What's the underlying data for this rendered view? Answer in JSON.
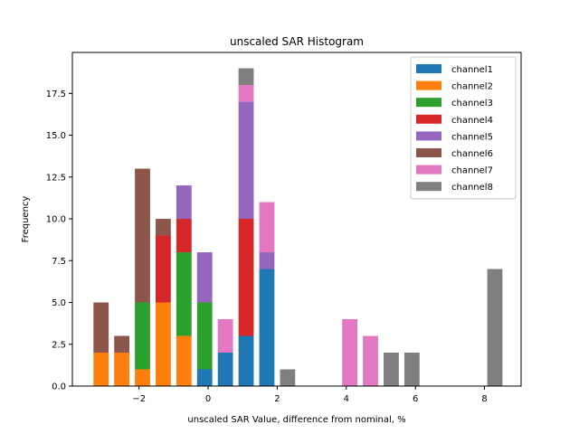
{
  "chart_data": {
    "type": "bar",
    "stacked": true,
    "title": "unscaled SAR Histogram",
    "xlabel": "unscaled SAR Value, difference from nominal, %",
    "ylabel": "Frequency",
    "xlim": [
      -3.93,
      9.06
    ],
    "ylim": [
      0,
      19.95
    ],
    "xticks": [
      -2,
      0,
      2,
      4,
      6,
      8
    ],
    "xtick_labels": [
      "−2",
      "0",
      "2",
      "4",
      "6",
      "8"
    ],
    "yticks": [
      0,
      2.5,
      5,
      7.5,
      10,
      12.5,
      15,
      17.5
    ],
    "ytick_labels": [
      "0.0",
      "2.5",
      "5.0",
      "7.5",
      "10.0",
      "12.5",
      "15.0",
      "17.5"
    ],
    "bin_width": 0.5,
    "x": [
      -3.1,
      -2.5,
      -1.9,
      -1.3,
      -0.7,
      -0.1,
      0.5,
      1.1,
      1.7,
      2.3,
      4.1,
      4.7,
      5.3,
      5.9,
      8.3
    ],
    "grid": false,
    "legend_position": "top-right",
    "series": [
      {
        "name": "channel1",
        "color": "#1f77b4",
        "values": [
          0,
          0,
          0,
          0,
          0,
          1,
          2,
          3,
          7,
          0,
          0,
          0,
          0,
          0,
          0
        ]
      },
      {
        "name": "channel2",
        "color": "#ff7f0e",
        "values": [
          2,
          2,
          1,
          5,
          3,
          0,
          0,
          0,
          0,
          0,
          0,
          0,
          0,
          0,
          0
        ]
      },
      {
        "name": "channel3",
        "color": "#2ca02c",
        "values": [
          0,
          0,
          4,
          0,
          5,
          4,
          0,
          0,
          0,
          0,
          0,
          0,
          0,
          0,
          0
        ]
      },
      {
        "name": "channel4",
        "color": "#d62728",
        "values": [
          0,
          0,
          0,
          4,
          2,
          0,
          0,
          7,
          0,
          0,
          0,
          0,
          0,
          0,
          0
        ]
      },
      {
        "name": "channel5",
        "color": "#9467bd",
        "values": [
          0,
          0,
          0,
          0,
          2,
          3,
          0,
          7,
          1,
          0,
          0,
          0,
          0,
          0,
          0
        ]
      },
      {
        "name": "channel6",
        "color": "#8c564b",
        "values": [
          3,
          1,
          8,
          1,
          0,
          0,
          0,
          0,
          0,
          0,
          0,
          0,
          0,
          0,
          0
        ]
      },
      {
        "name": "channel7",
        "color": "#e377c2",
        "values": [
          0,
          0,
          0,
          0,
          0,
          0,
          2,
          1,
          3,
          0,
          4,
          3,
          0,
          0,
          0
        ]
      },
      {
        "name": "channel8",
        "color": "#7f7f7f",
        "values": [
          0,
          0,
          0,
          0,
          0,
          0,
          0,
          1,
          0,
          1,
          0,
          0,
          2,
          2,
          7
        ]
      }
    ]
  }
}
